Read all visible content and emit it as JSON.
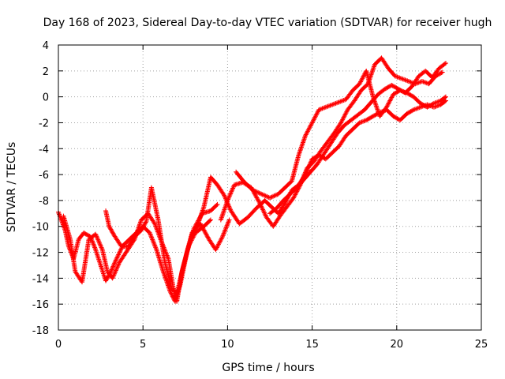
{
  "chart_data": {
    "type": "scatter",
    "title": "Day 168 of 2023, Sidereal Day-to-day VTEC variation (SDTVAR) for receiver hugh",
    "xlabel": "GPS time / hours",
    "ylabel": "SDTVAR / TECUs",
    "xlim": [
      0,
      25
    ],
    "ylim": [
      -18,
      4
    ],
    "xticks": [
      0,
      5,
      10,
      15,
      20,
      25
    ],
    "yticks": [
      -18,
      -16,
      -14,
      -12,
      -10,
      -8,
      -6,
      -4,
      -2,
      0,
      2,
      4
    ],
    "grid": true,
    "legend": "none",
    "marker": "+",
    "series_color": "#ff0000",
    "series": [
      {
        "x": [
          0.0,
          0.4,
          0.6,
          0.9,
          1.2,
          1.5,
          1.9,
          2.2,
          2.5,
          2.8,
          3.1,
          3.4,
          3.8,
          4.2,
          4.6,
          5.0,
          5.4,
          5.8,
          6.2,
          6.6,
          6.9,
          7.2,
          7.6,
          8.0,
          8.5,
          9.0,
          9.4
        ],
        "y": [
          -8.9,
          -10.3,
          -11.5,
          -12.5,
          -11.0,
          -10.5,
          -10.8,
          -11.8,
          -13.0,
          -14.2,
          -13.5,
          -12.6,
          -11.5,
          -11.0,
          -10.5,
          -10.0,
          -10.5,
          -11.8,
          -13.5,
          -15.0,
          -15.8,
          -14.5,
          -12.0,
          -10.2,
          -9.0,
          -8.8,
          -8.3
        ]
      },
      {
        "x": [
          0.3,
          0.7,
          1.0,
          1.4,
          1.8,
          2.2,
          2.6,
          2.9,
          3.2,
          3.6,
          4.0,
          4.5,
          4.9,
          5.3,
          5.7,
          6.1,
          6.5,
          6.8,
          7.0,
          7.3,
          7.7,
          8.1,
          8.6,
          9.0
        ],
        "y": [
          -9.2,
          -11.0,
          -13.5,
          -14.3,
          -11.0,
          -10.6,
          -11.8,
          -13.5,
          -14.0,
          -12.8,
          -12.0,
          -11.0,
          -9.5,
          -9.0,
          -9.8,
          -11.2,
          -12.5,
          -14.8,
          -15.8,
          -13.5,
          -11.5,
          -10.5,
          -10.0,
          -9.5
        ]
      },
      {
        "x": [
          2.8,
          3.0,
          3.3,
          3.7,
          4.1,
          4.5,
          4.9,
          5.2,
          5.5,
          5.9,
          6.3,
          6.7,
          7.0,
          7.4,
          7.9,
          8.4,
          8.9,
          9.3,
          9.7,
          10.1
        ],
        "y": [
          -8.8,
          -10.0,
          -10.7,
          -11.5,
          -11.6,
          -10.8,
          -10.3,
          -9.6,
          -7.0,
          -9.5,
          -12.8,
          -14.8,
          -15.2,
          -13.0,
          -10.5,
          -9.8,
          -11.0,
          -11.8,
          -10.8,
          -9.5
        ]
      },
      {
        "x": [
          8.2,
          8.6,
          9.0,
          9.4,
          9.8,
          10.2,
          10.7,
          11.2,
          11.7,
          12.2,
          12.6,
          13.0,
          13.4,
          13.8,
          14.2,
          14.6,
          15.0,
          15.4,
          15.8,
          16.2,
          16.6,
          17.0,
          17.4,
          17.8,
          18.2,
          18.6,
          19.0,
          19.4,
          19.8,
          20.2,
          20.6,
          21.0,
          21.4,
          21.8,
          22.2,
          22.6,
          22.9
        ],
        "y": [
          -10.0,
          -8.5,
          -6.2,
          -6.8,
          -7.6,
          -8.8,
          -9.8,
          -9.3,
          -8.6,
          -8.0,
          -8.5,
          -9.0,
          -8.2,
          -7.2,
          -6.8,
          -6.0,
          -4.8,
          -4.5,
          -4.8,
          -4.3,
          -3.8,
          -3.0,
          -2.5,
          -2.0,
          -1.8,
          -1.5,
          -1.2,
          -1.0,
          -1.5,
          -1.8,
          -1.3,
          -1.0,
          -0.8,
          -0.6,
          -0.8,
          -0.6,
          -0.3
        ]
      },
      {
        "x": [
          9.6,
          10.0,
          10.4,
          10.9,
          11.4,
          11.9,
          12.3,
          12.7,
          13.1,
          13.5,
          13.9,
          14.3,
          14.7,
          15.1,
          15.5,
          15.9,
          16.3,
          16.7,
          17.1,
          17.5,
          17.9,
          18.3,
          18.7,
          19.1,
          19.5,
          19.9,
          20.3,
          20.7,
          21.1,
          21.5,
          21.9,
          22.3,
          22.7
        ],
        "y": [
          -9.5,
          -8.0,
          -6.8,
          -6.6,
          -7.0,
          -8.2,
          -9.3,
          -10.0,
          -9.2,
          -8.5,
          -7.8,
          -6.8,
          -5.5,
          -5.0,
          -4.2,
          -3.5,
          -2.8,
          -2.0,
          -1.0,
          -0.3,
          0.5,
          1.0,
          2.5,
          3.0,
          2.2,
          1.6,
          1.4,
          1.2,
          1.0,
          1.2,
          1.0,
          1.6,
          1.9
        ]
      },
      {
        "x": [
          10.5,
          11.0,
          11.5,
          12.0,
          12.5,
          13.0,
          13.4,
          13.8,
          14.2,
          14.6,
          15.0,
          15.4,
          15.8,
          16.2,
          16.6,
          17.0,
          17.4,
          17.8,
          18.2,
          18.6,
          19.0,
          19.4,
          19.8,
          20.2,
          20.6,
          21.0,
          21.4,
          21.8,
          22.2,
          22.6,
          22.9
        ],
        "y": [
          -5.8,
          -6.6,
          -7.2,
          -7.5,
          -7.8,
          -7.5,
          -7.0,
          -6.5,
          -4.5,
          -3.0,
          -2.0,
          -1.0,
          -0.8,
          -0.6,
          -0.4,
          -0.2,
          0.5,
          1.0,
          2.0,
          0.0,
          -1.5,
          -0.8,
          0.2,
          0.5,
          0.3,
          0.0,
          -0.5,
          -0.8,
          -0.5,
          -0.3,
          0.0
        ]
      },
      {
        "x": [
          12.5,
          12.9,
          13.3,
          13.7,
          14.1,
          14.5,
          14.9,
          15.3,
          15.7,
          16.1,
          16.5,
          16.9,
          17.3,
          17.7,
          18.1,
          18.5,
          18.9,
          19.3,
          19.7,
          20.1,
          20.5,
          20.9,
          21.3,
          21.7,
          22.1,
          22.5,
          22.9
        ],
        "y": [
          -9.0,
          -8.6,
          -8.0,
          -7.5,
          -7.0,
          -6.4,
          -5.8,
          -5.2,
          -4.4,
          -3.6,
          -2.8,
          -2.2,
          -1.8,
          -1.4,
          -1.0,
          -0.4,
          0.2,
          0.6,
          0.9,
          0.6,
          0.3,
          0.8,
          1.6,
          2.0,
          1.5,
          2.2,
          2.6
        ]
      }
    ]
  }
}
